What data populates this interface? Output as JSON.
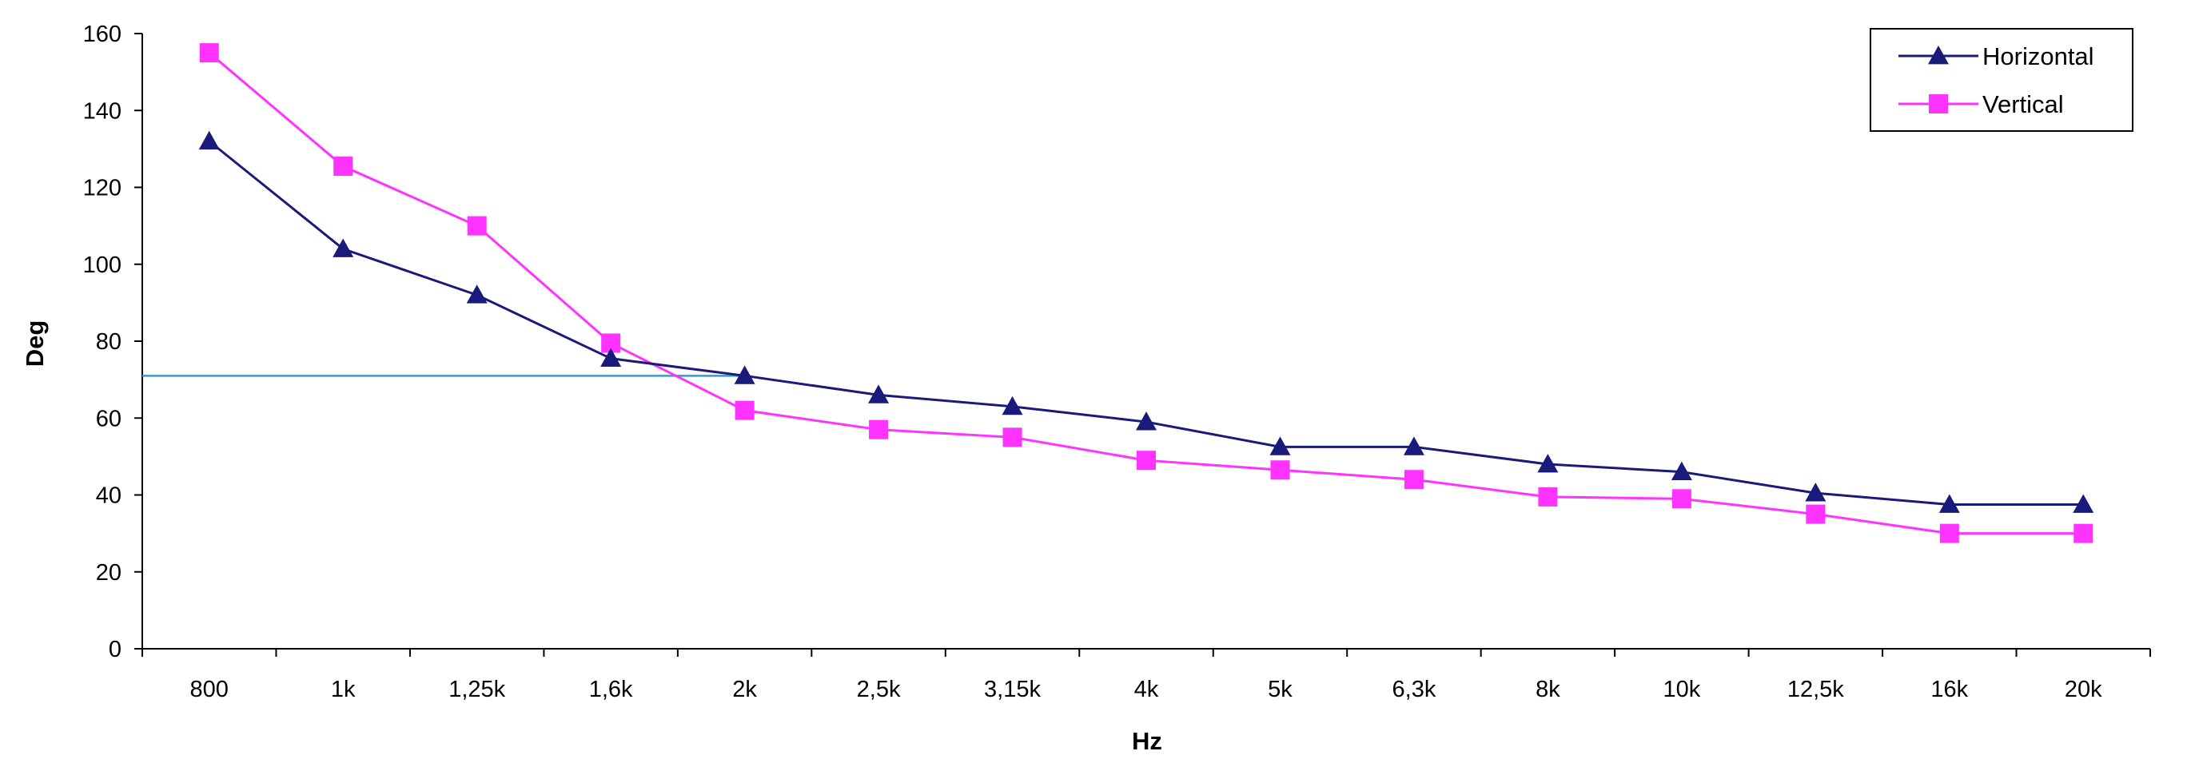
{
  "chart_data": {
    "type": "line",
    "xlabel": "Hz",
    "ylabel": "Deg",
    "categories": [
      "800",
      "1k",
      "1,25k",
      "1,6k",
      "2k",
      "2,5k",
      "3,15k",
      "4k",
      "5k",
      "6,3k",
      "8k",
      "10k",
      "12,5k",
      "16k",
      "20k"
    ],
    "ylim": [
      0,
      160
    ],
    "yticks": [
      0,
      20,
      40,
      60,
      80,
      100,
      120,
      140,
      160
    ],
    "grid": false,
    "legend_position": "top-right",
    "series": [
      {
        "name": "Horizontal",
        "marker": "triangle",
        "color": "#1a1a7a",
        "values": [
          132,
          104,
          92,
          75.5,
          71,
          66,
          63,
          59,
          52.5,
          52.5,
          48,
          46,
          40.5,
          37.5,
          37.5
        ]
      },
      {
        "name": "Vertical",
        "marker": "square",
        "color": "#ff33ff",
        "values": [
          155,
          125.5,
          110,
          79.5,
          62,
          57,
          55,
          49,
          46.5,
          44,
          39.5,
          39,
          35,
          30,
          30
        ]
      }
    ],
    "reference_line": {
      "value": 71,
      "x_end_category": "2k",
      "color": "#2a9fd6"
    }
  }
}
